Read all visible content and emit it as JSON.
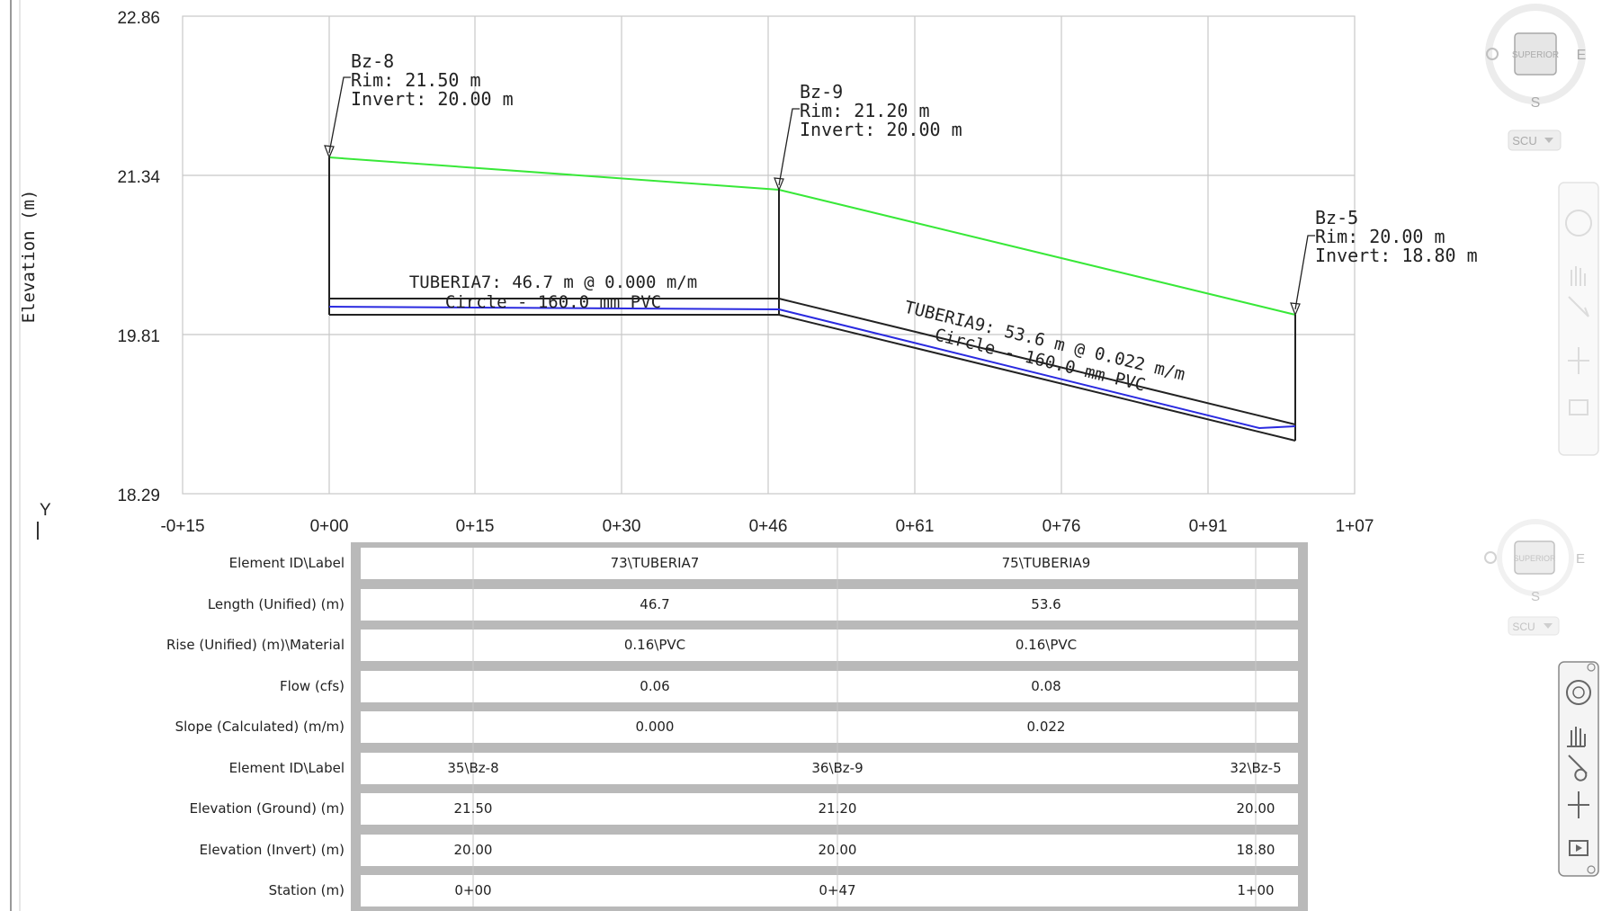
{
  "axis": {
    "y_label": "Elevation (m)",
    "y_ticks": [
      "22.86",
      "21.34",
      "19.81",
      "18.29"
    ],
    "x_ticks": [
      "-0+15",
      "0+00",
      "0+15",
      "0+30",
      "0+46",
      "0+61",
      "0+76",
      "0+91",
      "1+07"
    ],
    "ucs_label": "Y"
  },
  "structures": [
    {
      "name": "Bz-8",
      "rim": "Rim: 21.50 m",
      "invert": "Invert: 20.00 m"
    },
    {
      "name": "Bz-9",
      "rim": "Rim: 21.20 m",
      "invert": "Invert: 20.00 m"
    },
    {
      "name": "Bz-5",
      "rim": "Rim: 20.00 m",
      "invert": "Invert: 18.80 m"
    }
  ],
  "pipes": [
    {
      "label": "TUBERIA7: 46.7 m @ 0.000 m/m",
      "section": "Circle - 160.0 mm PVC"
    },
    {
      "label": "TUBERIA9: 53.6 m @ 0.022 m/m",
      "section": "Circle - 160.0 mm PVC"
    }
  ],
  "table": {
    "headers": [
      "Element ID\\Label",
      "Length (Unified) (m)",
      "Rise (Unified) (m)\\Material",
      "Flow (cfs)",
      "Slope (Calculated) (m/m)",
      "Element ID\\Label",
      "Elevation (Ground) (m)",
      "Elevation (Invert) (m)",
      "Station (m)"
    ],
    "pipe_rows": [
      [
        "73\\TUBERIA7",
        "75\\TUBERIA9"
      ],
      [
        "46.7",
        "53.6"
      ],
      [
        "0.16\\PVC",
        "0.16\\PVC"
      ],
      [
        "0.06",
        "0.08"
      ],
      [
        "0.000",
        "0.022"
      ]
    ],
    "node_rows": [
      [
        "35\\Bz-8",
        "36\\Bz-9",
        "32\\Bz-5"
      ],
      [
        "21.50",
        "21.20",
        "20.00"
      ],
      [
        "20.00",
        "20.00",
        "18.80"
      ],
      [
        "0+00",
        "0+47",
        "1+00"
      ]
    ]
  },
  "viewcube": {
    "face": "SUPERIOR",
    "east": "E",
    "south": "S",
    "ucs": "SCU"
  },
  "colors": {
    "ground": "#38e838",
    "hgl": "#2a2ae0",
    "pipe": "#222222",
    "grid": "#c8c8c8",
    "table_frame": "#b9b9b9"
  }
}
